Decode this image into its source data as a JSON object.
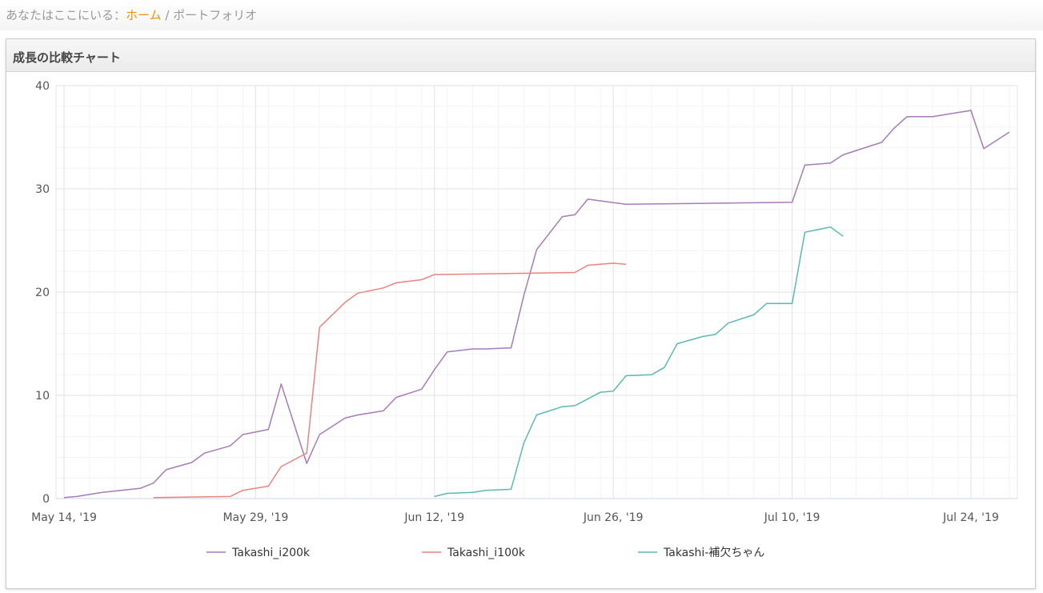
{
  "breadcrumb": {
    "prefix": "あなたはここにいる：",
    "home": "ホーム",
    "separator": " / ",
    "current": "ポートフォリオ"
  },
  "panel": {
    "title": "成長の比較チャート"
  },
  "chart_data": {
    "type": "line",
    "title": "",
    "xlabel": "",
    "ylabel": "",
    "x_axis": {
      "type": "date",
      "range": [
        "2019-05-14",
        "2019-07-28"
      ],
      "ticks": [
        "2019-05-14",
        "2019-05-29",
        "2019-06-12",
        "2019-06-26",
        "2019-07-10",
        "2019-07-24"
      ],
      "tick_labels": [
        "May 14, '19",
        "May 29, '19",
        "Jun 12, '19",
        "Jun 26, '19",
        "Jul 10, '19",
        "Jul 24, '19"
      ]
    },
    "y_axis": {
      "range": [
        0,
        40
      ],
      "ticks": [
        0,
        10,
        20,
        30,
        40
      ]
    },
    "grid": true,
    "legend_position": "bottom",
    "series": [
      {
        "name": "Takashi_i200k",
        "color": "#a77ab8",
        "points": [
          [
            "2019-05-14",
            0.1
          ],
          [
            "2019-05-15",
            0.2
          ],
          [
            "2019-05-17",
            0.6
          ],
          [
            "2019-05-20",
            1.0
          ],
          [
            "2019-05-21",
            1.5
          ],
          [
            "2019-05-22",
            2.8
          ],
          [
            "2019-05-24",
            3.5
          ],
          [
            "2019-05-25",
            4.4
          ],
          [
            "2019-05-27",
            5.1
          ],
          [
            "2019-05-28",
            6.2
          ],
          [
            "2019-05-30",
            6.7
          ],
          [
            "2019-05-31",
            11.1
          ],
          [
            "2019-06-02",
            3.4
          ],
          [
            "2019-06-03",
            6.2
          ],
          [
            "2019-06-05",
            7.8
          ],
          [
            "2019-06-06",
            8.1
          ],
          [
            "2019-06-08",
            8.5
          ],
          [
            "2019-06-09",
            9.8
          ],
          [
            "2019-06-11",
            10.6
          ],
          [
            "2019-06-12",
            12.5
          ],
          [
            "2019-06-13",
            14.2
          ],
          [
            "2019-06-15",
            14.5
          ],
          [
            "2019-06-16",
            14.5
          ],
          [
            "2019-06-18",
            14.6
          ],
          [
            "2019-06-19",
            19.7
          ],
          [
            "2019-06-20",
            24.1
          ],
          [
            "2019-06-22",
            27.3
          ],
          [
            "2019-06-23",
            27.5
          ],
          [
            "2019-06-24",
            29.0
          ],
          [
            "2019-06-27",
            28.5
          ],
          [
            "2019-07-10",
            28.7
          ],
          [
            "2019-07-11",
            32.3
          ],
          [
            "2019-07-13",
            32.5
          ],
          [
            "2019-07-14",
            33.3
          ],
          [
            "2019-07-17",
            34.5
          ],
          [
            "2019-07-18",
            35.9
          ],
          [
            "2019-07-19",
            37.0
          ],
          [
            "2019-07-21",
            37.0
          ],
          [
            "2019-07-22",
            37.2
          ],
          [
            "2019-07-24",
            37.6
          ],
          [
            "2019-07-25",
            33.9
          ],
          [
            "2019-07-27",
            35.5
          ]
        ]
      },
      {
        "name": "Takashi_i100k",
        "color": "#e8837e",
        "points": [
          [
            "2019-05-21",
            0.1
          ],
          [
            "2019-05-27",
            0.2
          ],
          [
            "2019-05-28",
            0.8
          ],
          [
            "2019-05-30",
            1.2
          ],
          [
            "2019-05-31",
            3.1
          ],
          [
            "2019-06-02",
            4.4
          ],
          [
            "2019-06-03",
            16.6
          ],
          [
            "2019-06-05",
            19.0
          ],
          [
            "2019-06-06",
            19.9
          ],
          [
            "2019-06-08",
            20.4
          ],
          [
            "2019-06-09",
            20.9
          ],
          [
            "2019-06-11",
            21.2
          ],
          [
            "2019-06-12",
            21.7
          ],
          [
            "2019-06-23",
            21.9
          ],
          [
            "2019-06-24",
            22.6
          ],
          [
            "2019-06-26",
            22.8
          ],
          [
            "2019-06-27",
            22.7
          ]
        ]
      },
      {
        "name": "Takashi-補欠ちゃん",
        "color": "#5bb8b2",
        "points": [
          [
            "2019-06-12",
            0.2
          ],
          [
            "2019-06-13",
            0.5
          ],
          [
            "2019-06-15",
            0.6
          ],
          [
            "2019-06-16",
            0.8
          ],
          [
            "2019-06-18",
            0.9
          ],
          [
            "2019-06-19",
            5.4
          ],
          [
            "2019-06-20",
            8.1
          ],
          [
            "2019-06-22",
            8.9
          ],
          [
            "2019-06-23",
            9.0
          ],
          [
            "2019-06-25",
            10.3
          ],
          [
            "2019-06-26",
            10.4
          ],
          [
            "2019-06-27",
            11.9
          ],
          [
            "2019-06-29",
            12.0
          ],
          [
            "2019-06-30",
            12.7
          ],
          [
            "2019-07-01",
            15.0
          ],
          [
            "2019-07-03",
            15.7
          ],
          [
            "2019-07-04",
            15.9
          ],
          [
            "2019-07-05",
            17.0
          ],
          [
            "2019-07-07",
            17.8
          ],
          [
            "2019-07-08",
            18.9
          ],
          [
            "2019-07-10",
            18.9
          ],
          [
            "2019-07-11",
            25.8
          ],
          [
            "2019-07-13",
            26.3
          ],
          [
            "2019-07-14",
            25.4
          ]
        ]
      }
    ]
  }
}
